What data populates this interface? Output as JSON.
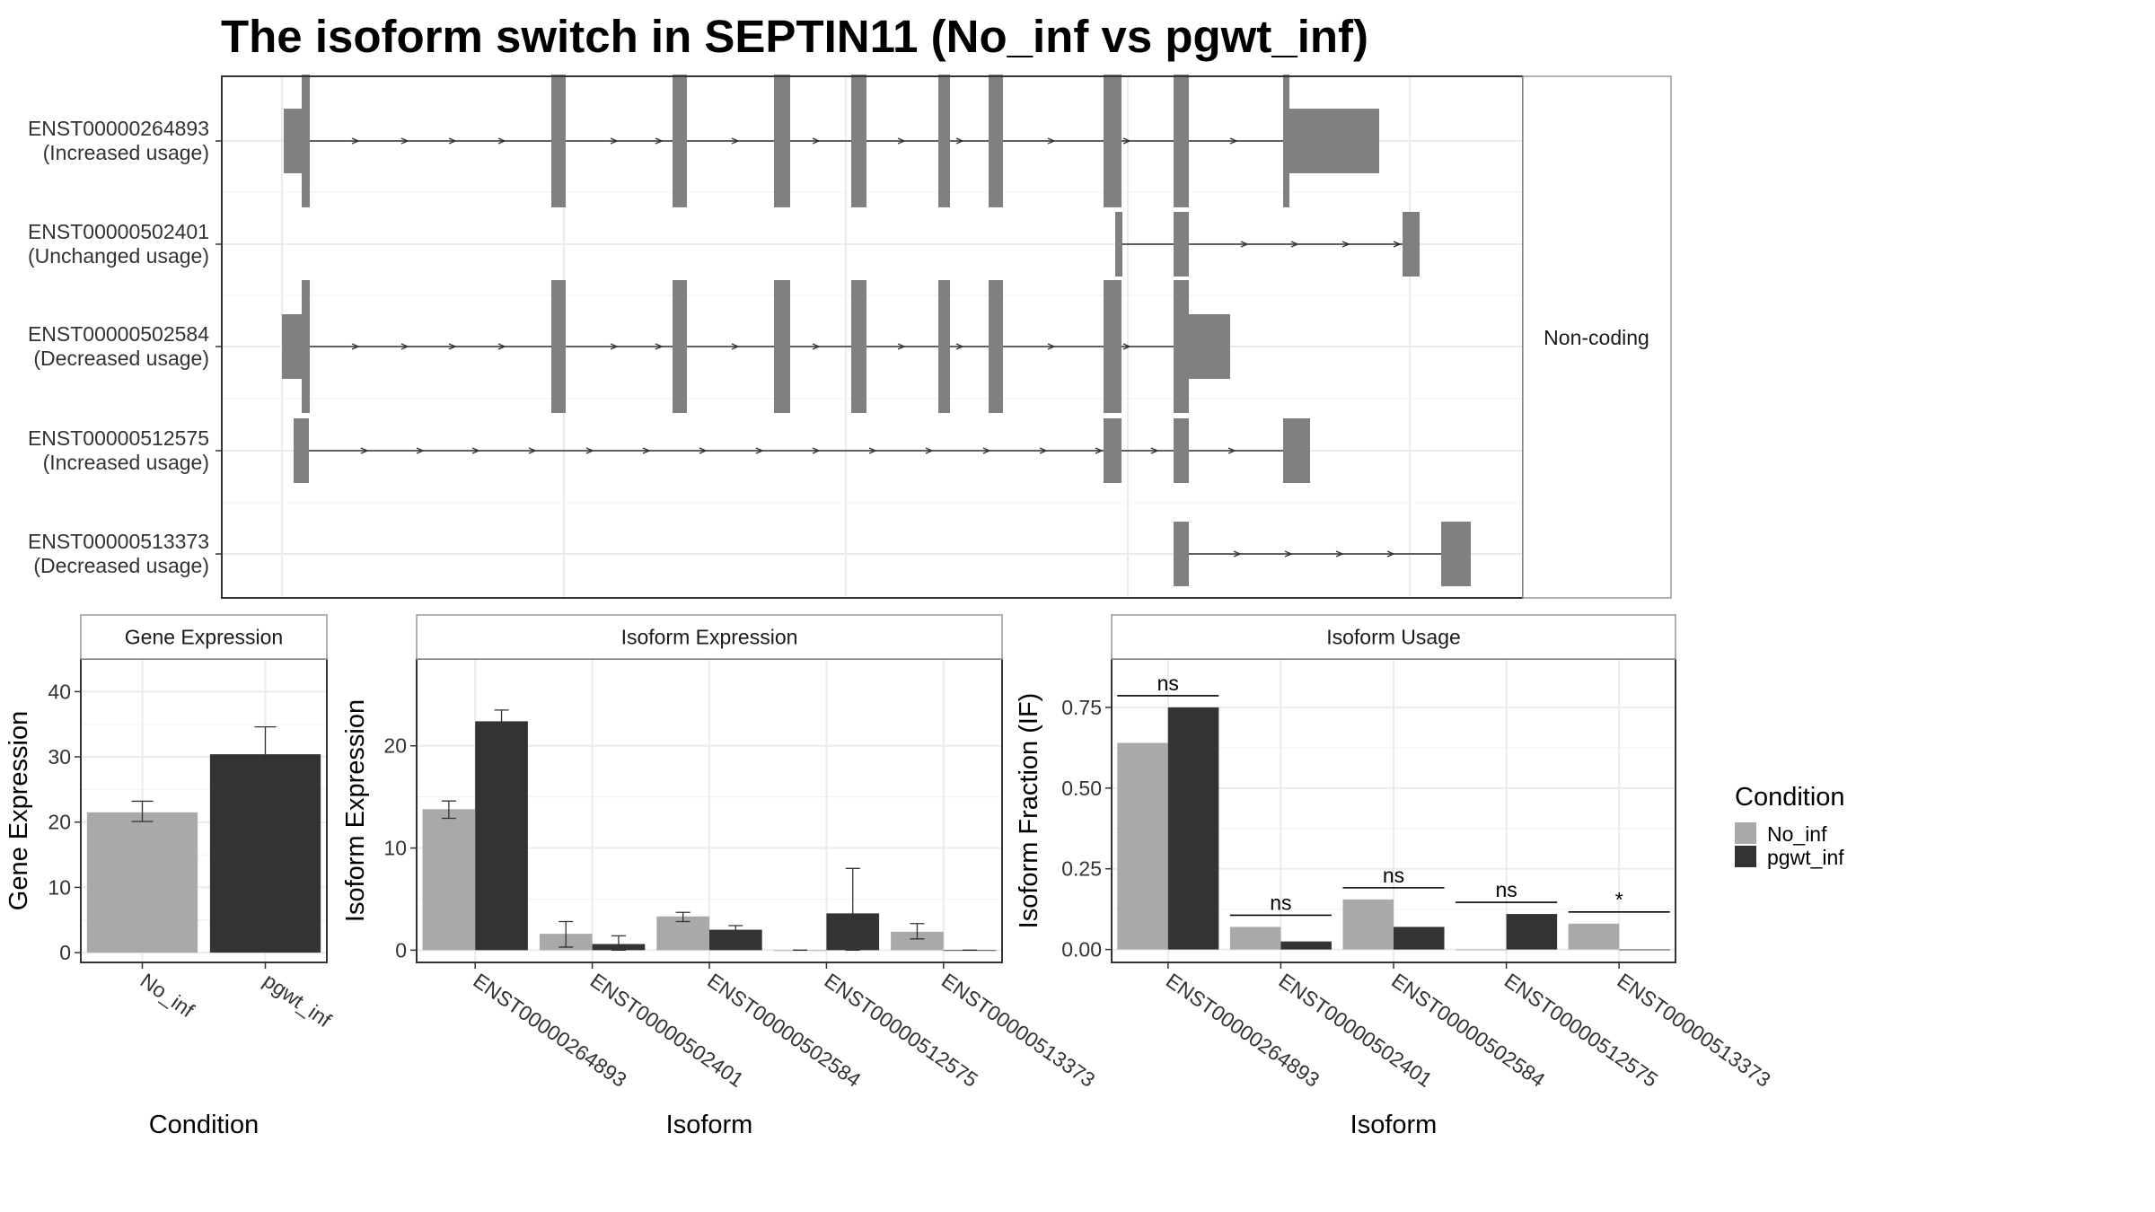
{
  "title": "The isoform switch in SEPTIN11 (No_inf vs pgwt_inf)",
  "colors": {
    "No_inf": "#a9a9a9",
    "pgwt_inf": "#333333",
    "exon": "#808080",
    "grid": "#ebebeb",
    "panel_border": "#333333",
    "strip_border": "#999999"
  },
  "legend": {
    "title": "Condition",
    "items": [
      "No_inf",
      "pgwt_inf"
    ]
  },
  "transcripts": {
    "strip_label": "Non-coding",
    "rows": [
      {
        "id": "ENST00000264893",
        "usage": "(Increased usage)"
      },
      {
        "id": "ENST00000502401",
        "usage": "(Unchanged usage)"
      },
      {
        "id": "ENST00000502584",
        "usage": "(Decreased usage)"
      },
      {
        "id": "ENST00000512575",
        "usage": "(Increased usage)"
      },
      {
        "id": "ENST00000513373",
        "usage": "(Decreased usage)"
      }
    ]
  },
  "chart_data": [
    {
      "type": "bar",
      "panel": "Gene Expression",
      "title": "Gene Expression",
      "xlabel": "Condition",
      "ylabel": "Gene Expression",
      "categories": [
        "No_inf",
        "pgwt_inf"
      ],
      "values": [
        21.5,
        30.4
      ],
      "err_low": [
        20.1,
        26.3
      ],
      "err_high": [
        23.2,
        34.6
      ],
      "yticks": [
        0,
        10,
        20,
        30,
        40
      ],
      "ylim": [
        -1.5,
        45
      ],
      "grid": true
    },
    {
      "type": "bar",
      "panel": "Isoform Expression",
      "title": "Isoform Expression",
      "xlabel": "Isoform",
      "ylabel": "Isoform Expression",
      "categories": [
        "ENST00000264893",
        "ENST00000502401",
        "ENST00000502584",
        "ENST00000512575",
        "ENST00000513373"
      ],
      "series": [
        {
          "name": "No_inf",
          "values": [
            13.8,
            1.6,
            3.3,
            0.0,
            1.8
          ],
          "err_low": [
            12.9,
            0.3,
            2.8,
            0.0,
            1.1
          ],
          "err_high": [
            14.6,
            2.8,
            3.7,
            0.0,
            2.6
          ]
        },
        {
          "name": "pgwt_inf",
          "values": [
            22.4,
            0.6,
            2.0,
            3.6,
            0.0
          ],
          "err_low": [
            21.4,
            0.0,
            1.6,
            0.0,
            0.0
          ],
          "err_high": [
            23.5,
            1.4,
            2.4,
            8.0,
            0.0
          ]
        }
      ],
      "yticks": [
        0,
        10,
        20
      ],
      "ylim": [
        -1.2,
        28.5
      ],
      "grid": true
    },
    {
      "type": "bar",
      "panel": "Isoform Usage",
      "title": "Isoform Usage",
      "xlabel": "Isoform",
      "ylabel": "Isoform Fraction (IF)",
      "categories": [
        "ENST00000264893",
        "ENST00000502401",
        "ENST00000502584",
        "ENST00000512575",
        "ENST00000513373"
      ],
      "series": [
        {
          "name": "No_inf",
          "values": [
            0.64,
            0.07,
            0.155,
            0.0,
            0.08
          ]
        },
        {
          "name": "pgwt_inf",
          "values": [
            0.75,
            0.025,
            0.07,
            0.11,
            0.0
          ]
        }
      ],
      "significance": [
        "ns",
        "ns",
        "ns",
        "ns",
        "*"
      ],
      "yticks": [
        0.0,
        0.25,
        0.5,
        0.75
      ],
      "ytick_labels": [
        "0.00",
        "0.25",
        "0.50",
        "0.75"
      ],
      "ylim": [
        -0.04,
        0.9
      ],
      "grid": true
    }
  ]
}
